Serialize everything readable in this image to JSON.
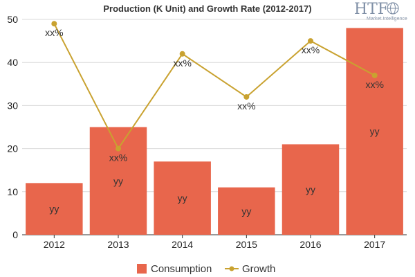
{
  "chart_data": {
    "type": "bar",
    "title": "Production (K Unit) and Growth Rate (2012-2017)",
    "categories": [
      "2012",
      "2013",
      "2014",
      "2015",
      "2016",
      "2017"
    ],
    "series": [
      {
        "name": "Consumption",
        "type": "bar",
        "values": [
          12,
          25,
          17,
          11,
          21,
          48
        ],
        "labels": [
          "yy",
          "yy",
          "yy",
          "yy",
          "yy",
          "yy"
        ],
        "color": "#e8664c"
      },
      {
        "name": "Growth",
        "type": "line",
        "values": [
          49,
          20,
          42,
          32,
          45,
          37
        ],
        "labels": [
          "xx%",
          "xx%",
          "xx%",
          "xx%",
          "xx%",
          "xx%"
        ],
        "color": "#c9a230"
      }
    ],
    "ylim": [
      0,
      50
    ],
    "yticks": [
      0,
      10,
      20,
      30,
      40,
      50
    ],
    "xlabel": "",
    "ylabel": "",
    "grid": true,
    "legend": "bottom-center"
  },
  "logo": {
    "name": "HTF",
    "subtitle": "Market Intelligence",
    "icon": "globe-icon"
  }
}
